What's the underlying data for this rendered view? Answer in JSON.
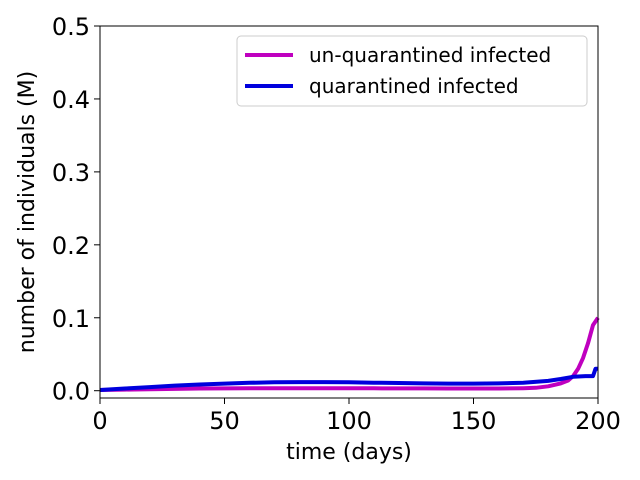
{
  "chart_data": {
    "type": "line",
    "xlabel": "time (days)",
    "ylabel": "number of individuals (M)",
    "xlim": [
      0,
      200
    ],
    "ylim": [
      -0.01,
      0.5
    ],
    "xticks": [
      0,
      50,
      100,
      150,
      200
    ],
    "xtick_labels": [
      "0",
      "50",
      "100",
      "150",
      "200"
    ],
    "yticks": [
      0.0,
      0.1,
      0.2,
      0.3,
      0.4,
      0.5
    ],
    "ytick_labels": [
      "0.0",
      "0.1",
      "0.2",
      "0.3",
      "0.4",
      "0.5"
    ],
    "grid": false,
    "legend_position": "top-right",
    "series": [
      {
        "name": "un-quarantined infected",
        "color": "#bf00bf",
        "x": [
          0,
          10,
          20,
          30,
          40,
          50,
          60,
          70,
          80,
          90,
          100,
          110,
          120,
          130,
          140,
          150,
          160,
          170,
          175,
          180,
          185,
          188,
          190,
          192,
          194,
          196,
          198,
          200
        ],
        "y": [
          0.001,
          0.0015,
          0.002,
          0.0025,
          0.003,
          0.0032,
          0.0034,
          0.0035,
          0.0035,
          0.0035,
          0.0034,
          0.0033,
          0.0032,
          0.0031,
          0.003,
          0.003,
          0.003,
          0.0035,
          0.004,
          0.006,
          0.01,
          0.014,
          0.02,
          0.03,
          0.045,
          0.065,
          0.09,
          0.1
        ]
      },
      {
        "name": "quarantined infected",
        "color": "#0000dd",
        "x": [
          0,
          10,
          20,
          30,
          40,
          50,
          60,
          70,
          80,
          90,
          100,
          110,
          120,
          130,
          140,
          150,
          160,
          170,
          180,
          185,
          190,
          195,
          198,
          199,
          200
        ],
        "y": [
          0.001,
          0.003,
          0.005,
          0.007,
          0.0085,
          0.0098,
          0.0108,
          0.0115,
          0.0118,
          0.0118,
          0.0115,
          0.011,
          0.0105,
          0.01,
          0.0097,
          0.0097,
          0.01,
          0.011,
          0.0135,
          0.016,
          0.019,
          0.02,
          0.02,
          0.03,
          0.03
        ]
      }
    ]
  }
}
